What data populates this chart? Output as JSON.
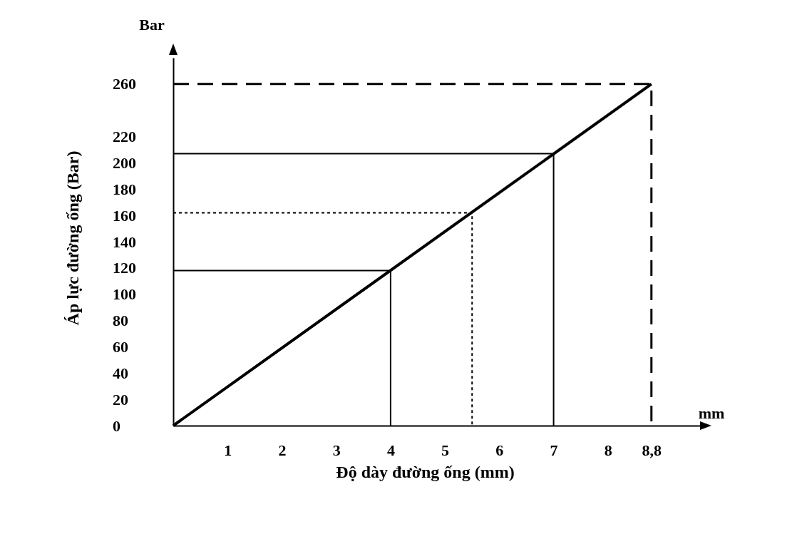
{
  "chart_data": {
    "type": "line",
    "xlabel": "Độ dày đường ống (mm)",
    "ylabel": "Áp lực đường ống (Bar)",
    "annotations": [
      "Bar",
      "mm"
    ],
    "xlim": [
      0,
      9.8
    ],
    "ylim": [
      0,
      280
    ],
    "xticks": [
      1,
      2,
      3,
      4,
      5,
      6,
      7,
      8,
      {
        "value": 8.8,
        "label": "8,8"
      }
    ],
    "yticks": [
      0,
      20,
      40,
      60,
      80,
      100,
      120,
      140,
      160,
      180,
      200,
      220,
      260
    ],
    "series": [
      {
        "color": "#000000",
        "line_style": "solid",
        "x": [
          0,
          8.8
        ],
        "values": [
          0,
          260
        ]
      },
      {
        "color": "#000000",
        "line_style": "solid",
        "x": [
          0,
          4,
          4
        ],
        "values": [
          118,
          118,
          0
        ]
      },
      {
        "color": "#000000",
        "line_style": "dotted",
        "x": [
          0,
          5.5,
          5.5
        ],
        "values": [
          162,
          162,
          0
        ]
      },
      {
        "color": "#000000",
        "line_style": "solid",
        "x": [
          0,
          7,
          7
        ],
        "values": [
          207,
          207,
          0
        ]
      },
      {
        "color": "#000000",
        "line_style": "dashed",
        "x": [
          0,
          8.8,
          8.8
        ],
        "values": [
          260,
          260,
          0
        ]
      }
    ]
  }
}
